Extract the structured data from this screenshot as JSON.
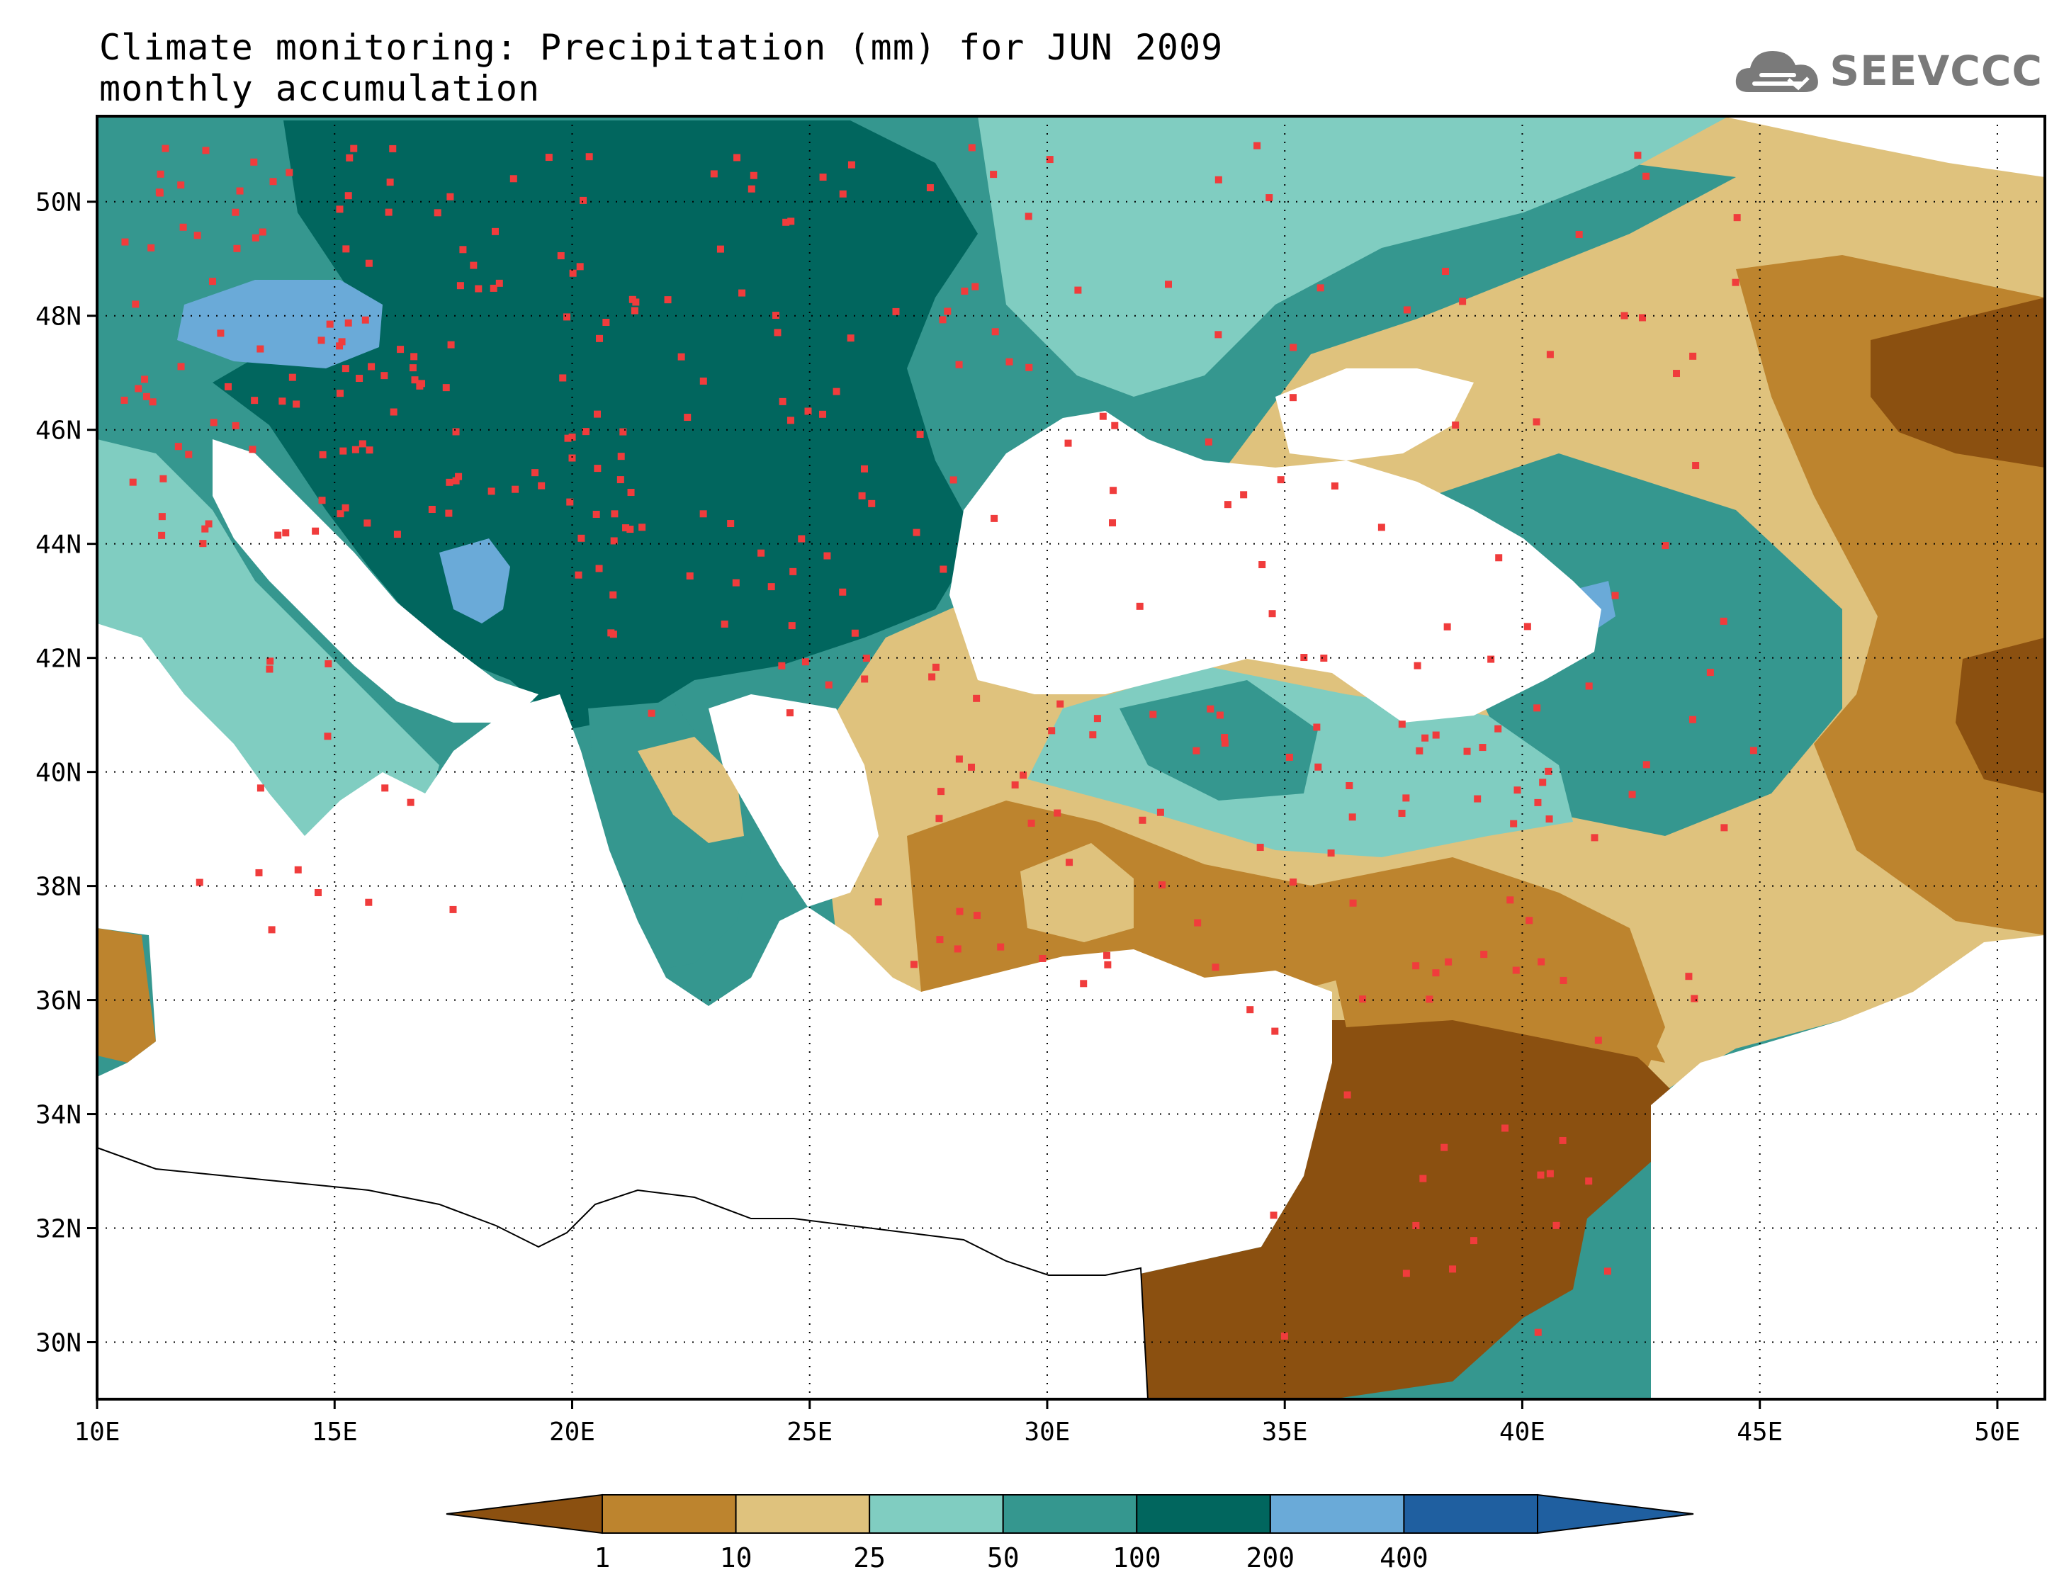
{
  "title": {
    "line1": "Climate monitoring: Precipitation (mm) for JUN 2009",
    "line2": "monthly accumulation"
  },
  "logo": {
    "text": "SEEVCCC",
    "icon": "cloud-icon"
  },
  "map": {
    "lon_range": [
      10,
      51
    ],
    "lat_range": [
      29,
      51.5
    ],
    "lon_ticks": [
      "10E",
      "15E",
      "20E",
      "25E",
      "30E",
      "35E",
      "40E",
      "45E",
      "50E"
    ],
    "lat_ticks": [
      "30N",
      "32N",
      "34N",
      "36N",
      "38N",
      "40N",
      "42N",
      "44N",
      "46N",
      "48N",
      "50N"
    ],
    "grid": "dotted"
  },
  "legend": {
    "boundaries": [
      "1",
      "10",
      "25",
      "50",
      "100",
      "200",
      "400"
    ],
    "colors": [
      "#8b5010",
      "#bd842e",
      "#dfc27d",
      "#80cdc1",
      "#35978f",
      "#01665e",
      "#6aaad8",
      "#1f5fa0"
    ]
  },
  "colors": {
    "station": "#f03c3c",
    "background": "#ffffff"
  }
}
